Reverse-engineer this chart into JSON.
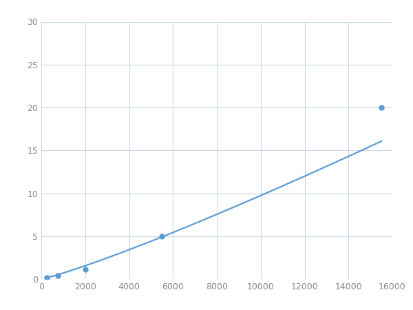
{
  "x": [
    250,
    750,
    2000,
    5500,
    15500
  ],
  "y": [
    0.2,
    0.4,
    1.1,
    5.0,
    20.0
  ],
  "line_color": "#5b9bd5",
  "marker_color": "#5b9bd5",
  "marker_size": 5,
  "line_width": 1.6,
  "xlim": [
    0,
    16000
  ],
  "ylim": [
    0,
    30
  ],
  "xticks": [
    0,
    2000,
    4000,
    6000,
    8000,
    10000,
    12000,
    14000,
    16000
  ],
  "yticks": [
    0,
    5,
    10,
    15,
    20,
    25,
    30
  ],
  "grid_color": "#c8d8e8",
  "background_color": "#ffffff",
  "fig_width": 6.0,
  "fig_height": 4.5,
  "dpi": 100
}
